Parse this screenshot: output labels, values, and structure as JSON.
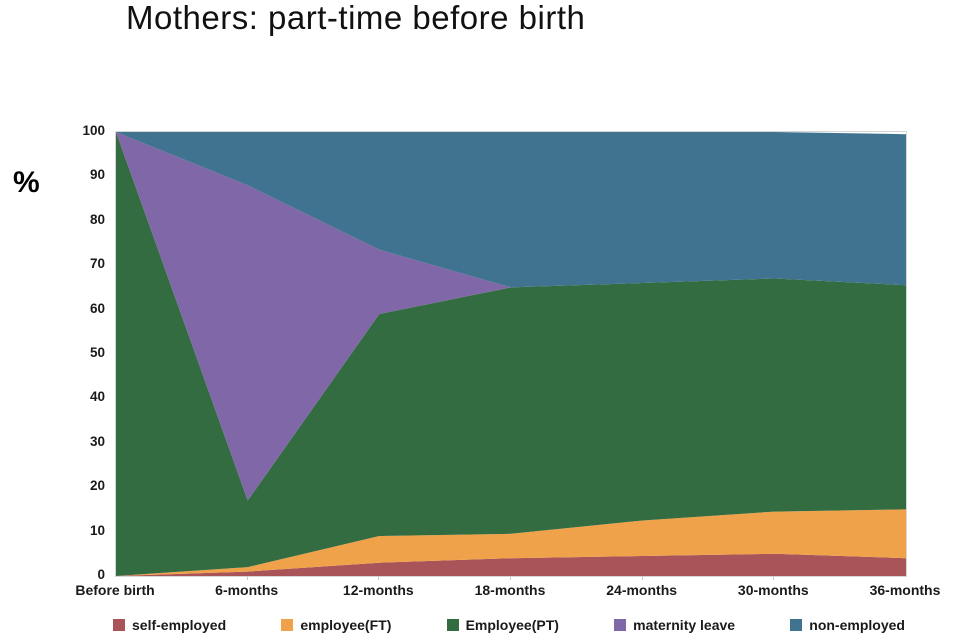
{
  "title": "Mothers: part-time before birth",
  "y_axis_unit": "%",
  "chart_data": {
    "type": "area",
    "stacked": true,
    "title": "Mothers: part-time before birth",
    "xlabel": "",
    "ylabel": "%",
    "ylim": [
      0,
      100
    ],
    "yticks": [
      0,
      10,
      20,
      30,
      40,
      50,
      60,
      70,
      80,
      90,
      100
    ],
    "grid": false,
    "legend_position": "bottom",
    "categories": [
      "Before birth",
      "6-months",
      "12-months",
      "18-months",
      "24-months",
      "30-months",
      "36-months"
    ],
    "series": [
      {
        "name": "self-employed",
        "color": "#A85458",
        "values": [
          0,
          1,
          3,
          4,
          4.5,
          5,
          4
        ]
      },
      {
        "name": "employee(FT)",
        "color": "#F0A24B",
        "values": [
          0,
          1,
          6,
          5.5,
          8,
          9.5,
          11
        ]
      },
      {
        "name": "Employee(PT)",
        "color": "#346C42",
        "values": [
          100,
          15,
          50,
          55.5,
          53.5,
          52.5,
          50.5
        ]
      },
      {
        "name": "maternity leave",
        "color": "#8067A7",
        "values": [
          0,
          71,
          14.5,
          0,
          0,
          0,
          0
        ]
      },
      {
        "name": "non-employed",
        "color": "#3F7390",
        "values": [
          0,
          12,
          26.5,
          35,
          34,
          33,
          34
        ]
      }
    ]
  }
}
